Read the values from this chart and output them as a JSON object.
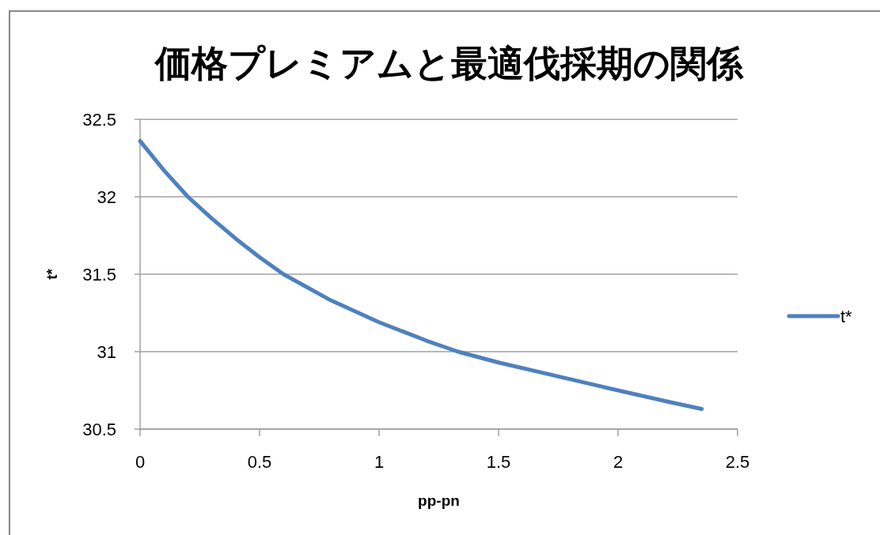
{
  "chart_data": {
    "type": "line",
    "title": "価格プレミアムと最適伐採期の関係",
    "xlabel": "pp-pn",
    "ylabel": "t*",
    "xlim": [
      0,
      2.5
    ],
    "xticks": [
      0,
      0.5,
      1,
      1.5,
      2,
      2.5
    ],
    "ylim": [
      30.5,
      32.5
    ],
    "yticks": [
      30.5,
      31,
      31.5,
      32,
      32.5
    ],
    "grid": "y",
    "legend": "right",
    "series": [
      {
        "name": "t*",
        "color": "#4f81bd",
        "x": [
          0,
          0.1,
          0.2,
          0.3,
          0.4,
          0.5,
          0.6,
          0.8,
          1.0,
          1.2,
          1.33,
          1.5,
          1.75,
          2.0,
          2.2,
          2.35
        ],
        "values": [
          32.36,
          32.17,
          32.0,
          31.86,
          31.73,
          31.61,
          31.5,
          31.33,
          31.19,
          31.07,
          31.0,
          30.93,
          30.84,
          30.75,
          30.68,
          30.63
        ]
      }
    ]
  }
}
